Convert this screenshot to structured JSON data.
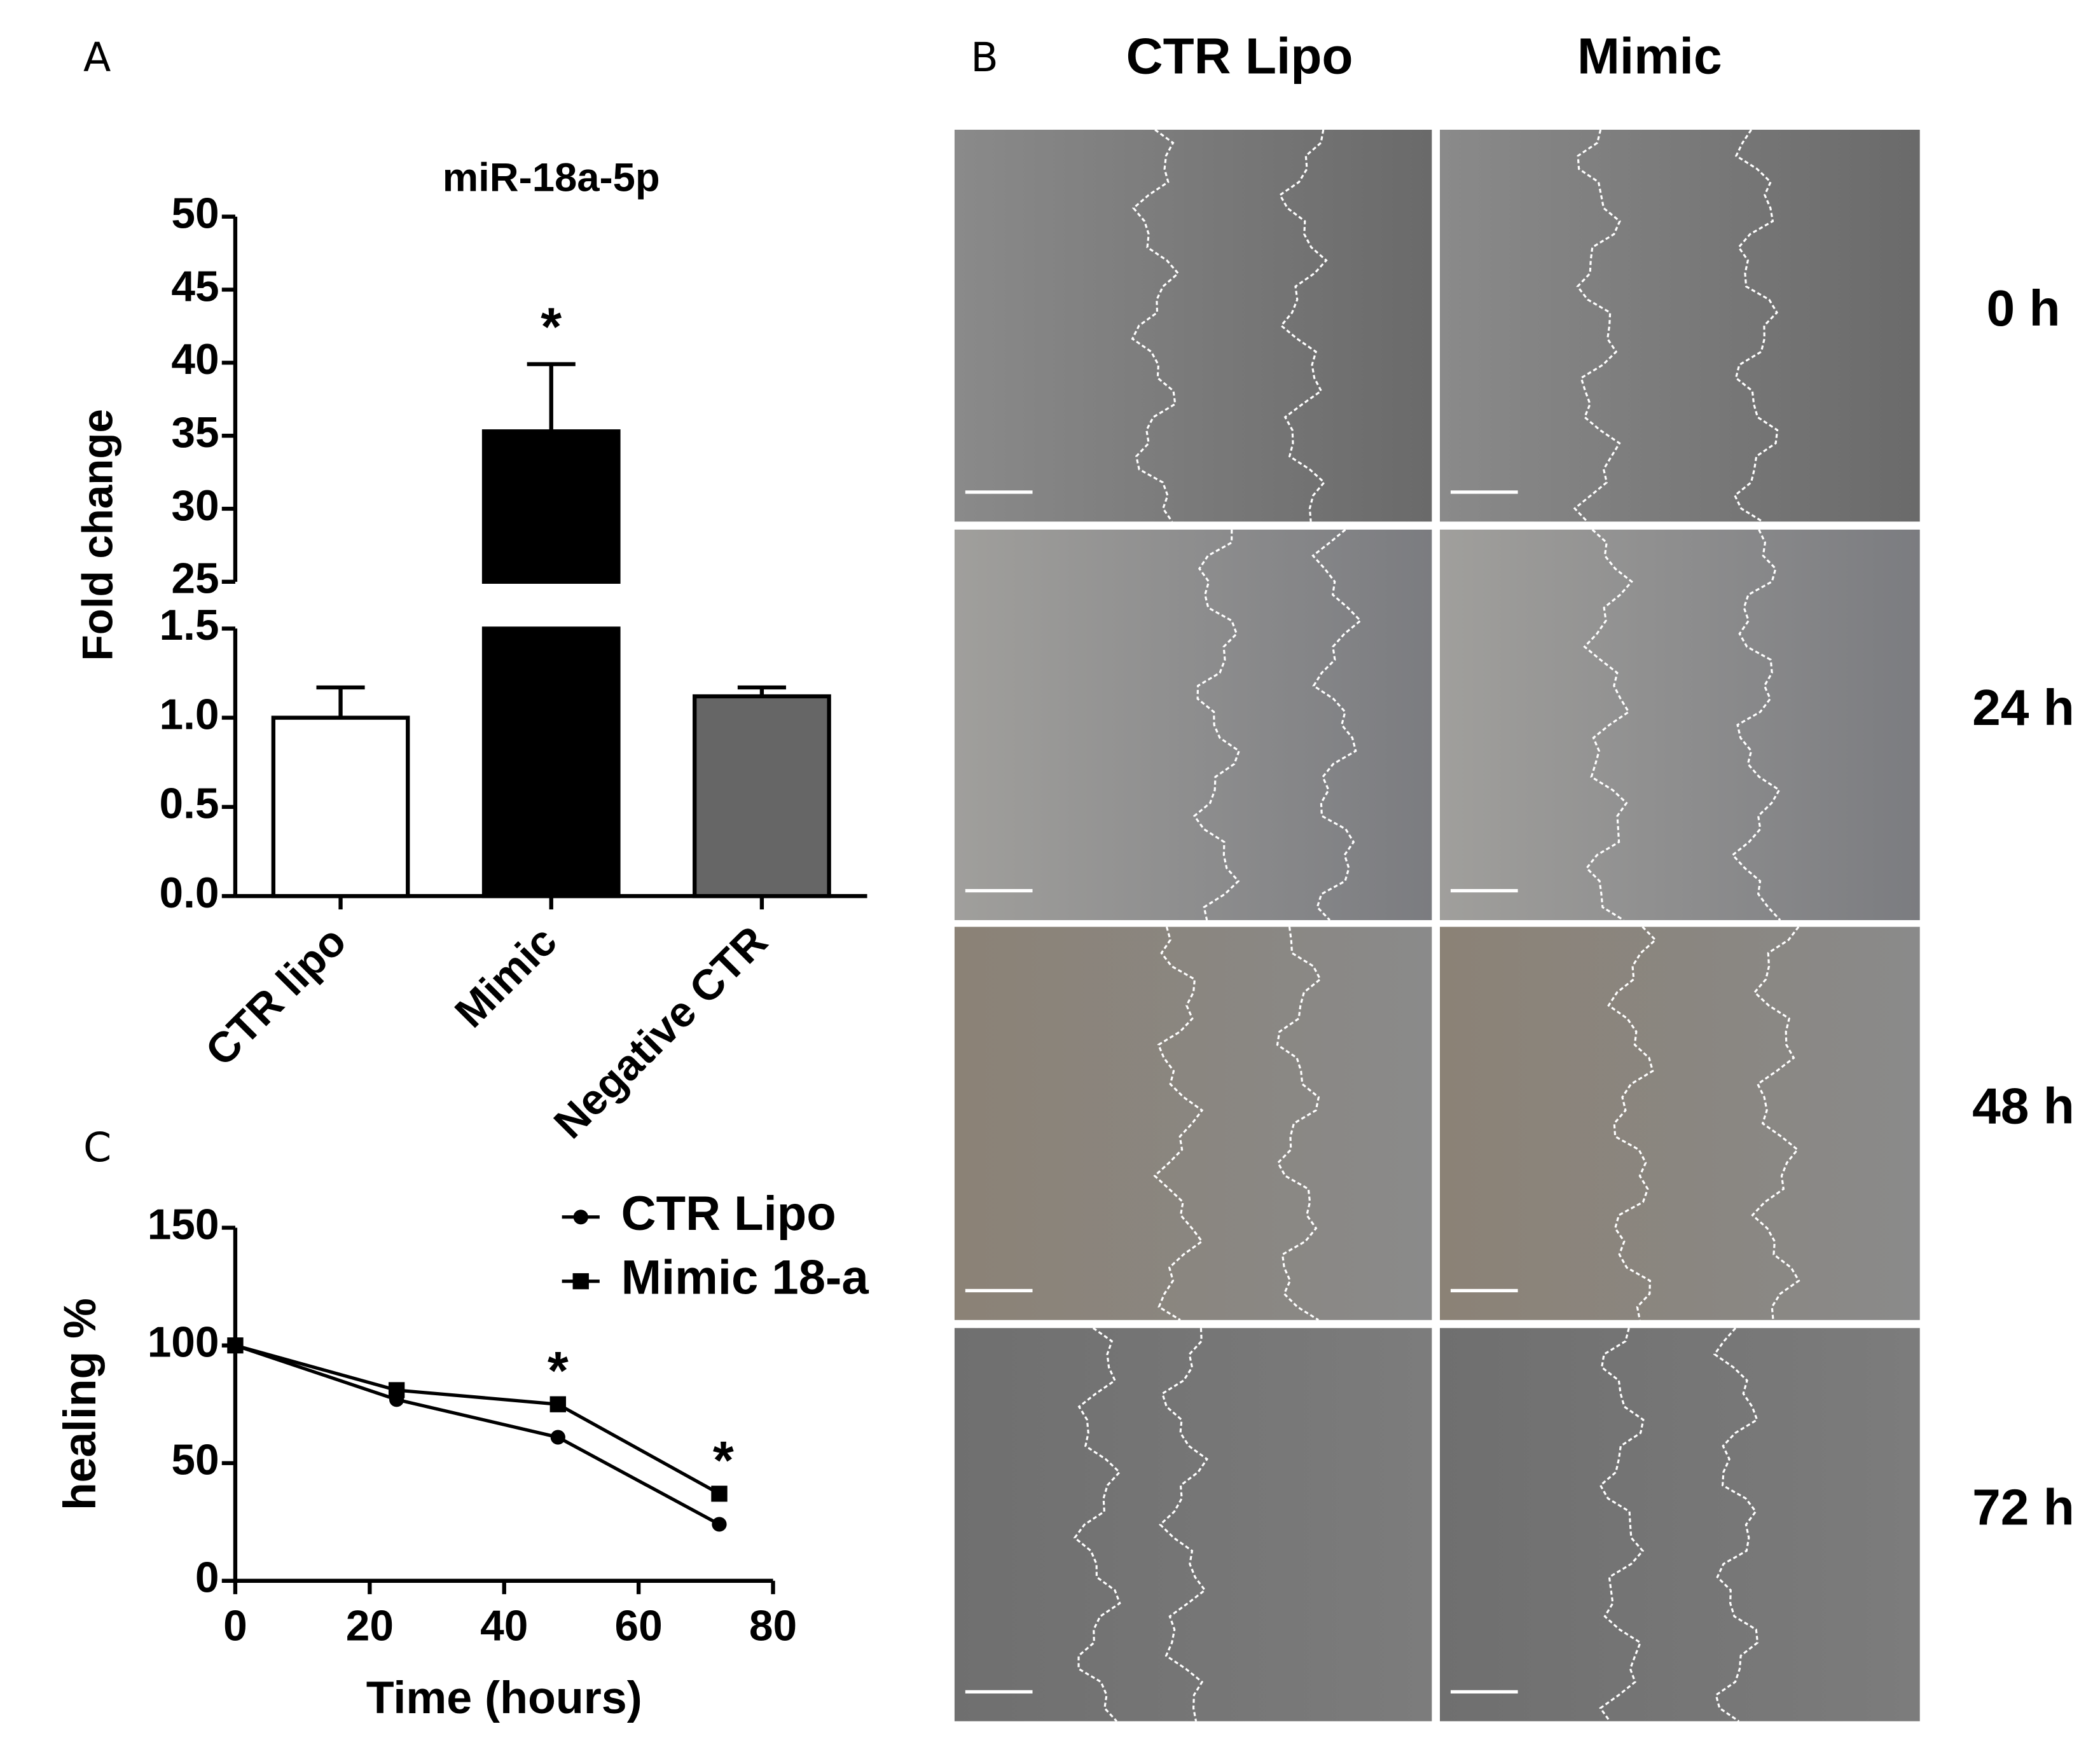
{
  "panel_labels": [
    "A",
    "B",
    "C"
  ],
  "chart_data": [
    {
      "type": "bar",
      "title": "miR-18a-5p",
      "ylabel": "Fold change",
      "categories": [
        "CTR lipo",
        "Mimic",
        "Negative CTR"
      ],
      "values": [
        1.0,
        35.3,
        1.12
      ],
      "errors": [
        0.17,
        4.6,
        0.05
      ],
      "colors": [
        "#ffffff",
        "#000000",
        "#666666"
      ],
      "ylim": [
        0,
        50
      ],
      "axis_break": [
        1.5,
        25
      ],
      "yticks": [
        {
          "value": 0,
          "label": "0.0"
        },
        0.5,
        {
          "value": 1,
          "label": "1.0"
        },
        1.5,
        25,
        30,
        35,
        40,
        45,
        50
      ],
      "annotation": "*"
    },
    {
      "type": "line",
      "xlabel": "Time (hours)",
      "ylabel": "healing %",
      "x": [
        0,
        24,
        48,
        72
      ],
      "series": [
        {
          "name": "CTR Lipo",
          "color": "#000000",
          "marker": "circle",
          "values": [
            100,
            77,
            61,
            24
          ]
        },
        {
          "name": "Mimic 18-a",
          "color": "#000000",
          "marker": "square",
          "values": [
            100,
            81,
            75,
            37
          ]
        }
      ],
      "xlim": [
        0,
        80
      ],
      "xticks": [
        0,
        20,
        40,
        60,
        80
      ],
      "ylim": [
        0,
        150
      ],
      "yticks": [
        0,
        50,
        100,
        150
      ],
      "annotations": [
        "*",
        "*"
      ]
    }
  ],
  "micrographs": {
    "columns": [
      "CTR Lipo",
      "Mimic"
    ],
    "rows": [
      "0 h",
      "24 h",
      "48 h",
      "72 h"
    ]
  }
}
